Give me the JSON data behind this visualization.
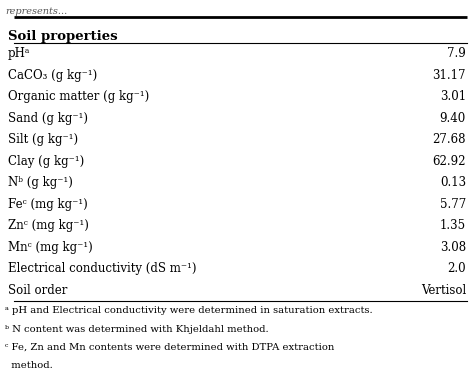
{
  "header": "Soil properties",
  "rows": [
    [
      "pHᵃ",
      "7.9"
    ],
    [
      "CaCO₃ (g kg⁻¹)",
      "31.17"
    ],
    [
      "Organic matter (g kg⁻¹)",
      "3.01"
    ],
    [
      "Sand (g kg⁻¹)",
      "9.40"
    ],
    [
      "Silt (g kg⁻¹)",
      "27.68"
    ],
    [
      "Clay (g kg⁻¹)",
      "62.92"
    ],
    [
      "Nᵇ (g kg⁻¹)",
      "0.13"
    ],
    [
      "Feᶜ (mg kg⁻¹)",
      "5.77"
    ],
    [
      "Znᶜ (mg kg⁻¹)",
      "1.35"
    ],
    [
      "Mnᶜ (mg kg⁻¹)",
      "3.08"
    ],
    [
      "Electrical conductivity (dS m⁻¹)",
      "2.0"
    ],
    [
      "Soil order",
      "Vertisol"
    ]
  ],
  "footnotes": [
    "ᵃ pH and Electrical conductivity were determined in saturation extracts.",
    "ᵇ N content was determined with Khjeldahl method.",
    "ᶜ Fe, Zn and Mn contents were determined with DTPA extraction",
    "  method."
  ],
  "top_caption": "represents...",
  "bg_color": "#ffffff",
  "font_size": 8.5,
  "footnote_font_size": 7.2,
  "header_font_size": 9.5
}
